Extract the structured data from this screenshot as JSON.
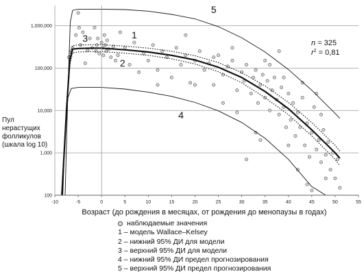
{
  "chart_data": {
    "type": "scatter",
    "title": "",
    "xlabel": "Возраст (до рождения в месяцах, от рождения до менопаузы в годах)",
    "ylabel_lines": [
      "Пул",
      "нерастущих",
      "фолликулов",
      "(шкала  log 10)"
    ],
    "xlim": [
      -10,
      55
    ],
    "ylim": [
      100,
      3000000
    ],
    "y_scale": "log10",
    "grid": "horizontal",
    "x_ticks": [
      "-10",
      "-5",
      "0",
      "5",
      "10",
      "15",
      "20",
      "25",
      "30",
      "35",
      "40",
      "45",
      "50",
      "55"
    ],
    "y_ticks": [
      {
        "value": 100,
        "label": "100"
      },
      {
        "value": 1000,
        "label": "1,000"
      },
      {
        "value": 10000,
        "label": "10,000"
      },
      {
        "value": 100000,
        "label": "100,000"
      },
      {
        "value": 1000000,
        "label": "1,000,000"
      }
    ],
    "stats": {
      "n_label": "n",
      "n_value": "= 325",
      "r2_label": "r",
      "r2_sup": "2",
      "r2_value": "= 0,81"
    },
    "curve_labels": [
      {
        "text": "1",
        "at": [
          7,
          500000
        ]
      },
      {
        "text": "2",
        "at": [
          4.5,
          110000
        ]
      },
      {
        "text": "3",
        "at": [
          -3.5,
          420000
        ]
      },
      {
        "text": "4",
        "at": [
          17,
          6500
        ]
      },
      {
        "text": "5",
        "at": [
          24,
          2000000
        ]
      }
    ],
    "series": [
      {
        "name": "1 – модель Wallace–Kelsey",
        "style": "solid-thick",
        "x": [
          -8.5,
          -7.5,
          -6.8,
          -6.2,
          -5,
          -2,
          0,
          5,
          10,
          15,
          20,
          25,
          30,
          35,
          40,
          45,
          50,
          51
        ],
        "y": [
          100,
          10000,
          150000,
          280000,
          290000,
          295000,
          295000,
          270000,
          240000,
          200000,
          155000,
          105000,
          60000,
          28000,
          11000,
          3500,
          1000,
          750
        ]
      },
      {
        "name": "2 – нижний 95% ДИ для модели",
        "style": "dotted",
        "x": [
          -8.5,
          -7.5,
          -6.8,
          -6.2,
          -5,
          -2,
          0,
          5,
          10,
          15,
          20,
          25,
          30,
          35,
          40,
          45,
          50,
          51
        ],
        "y": [
          100,
          8000,
          120000,
          230000,
          240000,
          245000,
          245000,
          225000,
          200000,
          165000,
          125000,
          82000,
          45000,
          20000,
          8000,
          2500,
          700,
          500
        ]
      },
      {
        "name": "3 – верхний 95% ДИ для модели",
        "style": "dotted",
        "x": [
          -8.5,
          -7.5,
          -6.8,
          -6.2,
          -5,
          -2,
          0,
          5,
          10,
          15,
          20,
          25,
          30,
          35,
          40,
          45,
          50,
          51
        ],
        "y": [
          100,
          12000,
          190000,
          340000,
          350000,
          355000,
          355000,
          330000,
          295000,
          250000,
          195000,
          135000,
          78000,
          38000,
          15500,
          5200,
          1500,
          1100
        ]
      },
      {
        "name": "4 – нижний 95% ДИ предел прогнозирования",
        "style": "solid-thin",
        "x": [
          -8.3,
          -7.8,
          -7.2,
          -6.5,
          -5,
          0,
          5,
          10,
          15,
          20,
          25,
          30,
          35,
          40,
          45,
          48
        ],
        "y": [
          100,
          3000,
          20000,
          33000,
          35000,
          35000,
          32000,
          27000,
          21500,
          15500,
          9800,
          5200,
          2200,
          700,
          160,
          100
        ]
      },
      {
        "name": "5 – верхний 95% ДИ предел прогнозирования",
        "style": "solid-thin",
        "x": [
          -7.8,
          -7.2,
          -6.7,
          -6.2,
          -5,
          0,
          5,
          10,
          15,
          20,
          25,
          30,
          35,
          40,
          45,
          50,
          51
        ],
        "y": [
          100,
          30000,
          1200000,
          2300000,
          2450000,
          2450000,
          2400000,
          2200000,
          1850000,
          1450000,
          950000,
          520000,
          240000,
          92000,
          30000,
          8500,
          6500
        ]
      }
    ],
    "observed_label": "наблюдаемые значения",
    "observed_sample": [
      [
        -7,
        180000
      ],
      [
        -6.5,
        250000
      ],
      [
        -6.2,
        300000
      ],
      [
        -5.5,
        600000
      ],
      [
        -5,
        2000000
      ],
      [
        -4.8,
        900000
      ],
      [
        -4.5,
        350000
      ],
      [
        -4,
        700000
      ],
      [
        -3.5,
        130000
      ],
      [
        -3,
        260000
      ],
      [
        -2.5,
        500000
      ],
      [
        -2,
        300000
      ],
      [
        -1.5,
        900000
      ],
      [
        -1.2,
        250000
      ],
      [
        -1,
        350000
      ],
      [
        -0.8,
        500000
      ],
      [
        -0.5,
        220000
      ],
      [
        0,
        400000
      ],
      [
        0.2,
        300000
      ],
      [
        0.4,
        200000
      ],
      [
        0.6,
        600000
      ],
      [
        0.8,
        350000
      ],
      [
        1,
        250000
      ],
      [
        1.2,
        450000
      ],
      [
        1.5,
        280000
      ],
      [
        2,
        180000
      ],
      [
        2.5,
        320000
      ],
      [
        3,
        150000
      ],
      [
        3.5,
        200000
      ],
      [
        4,
        700000
      ],
      [
        5,
        300000
      ],
      [
        6,
        120000
      ],
      [
        7,
        400000
      ],
      [
        8,
        80000
      ],
      [
        9,
        220000
      ],
      [
        10,
        150000
      ],
      [
        11,
        350000
      ],
      [
        12,
        90000
      ],
      [
        13,
        250000
      ],
      [
        14,
        180000
      ],
      [
        15,
        60000
      ],
      [
        16,
        300000
      ],
      [
        17,
        120000
      ],
      [
        18,
        200000
      ],
      [
        19,
        45000
      ],
      [
        20,
        150000
      ],
      [
        21,
        250000
      ],
      [
        22,
        90000
      ],
      [
        23,
        130000
      ],
      [
        24,
        40000
      ],
      [
        25,
        200000
      ],
      [
        26,
        70000
      ],
      [
        27,
        110000
      ],
      [
        28,
        150000
      ],
      [
        29,
        30000
      ],
      [
        30,
        80000
      ],
      [
        30.5,
        50000
      ],
      [
        31,
        120000
      ],
      [
        32,
        25000
      ],
      [
        32.5,
        60000
      ],
      [
        33,
        90000
      ],
      [
        33.5,
        15000
      ],
      [
        34,
        40000
      ],
      [
        34.5,
        70000
      ],
      [
        35,
        20000
      ],
      [
        35.5,
        50000
      ],
      [
        36,
        10000
      ],
      [
        36.5,
        30000
      ],
      [
        37,
        60000
      ],
      [
        37.5,
        18000
      ],
      [
        38,
        8000
      ],
      [
        38.5,
        35000
      ],
      [
        39,
        12000
      ],
      [
        39.5,
        4000
      ],
      [
        40,
        25000
      ],
      [
        40.5,
        6000
      ],
      [
        41,
        15000
      ],
      [
        41.5,
        2500
      ],
      [
        42,
        9000
      ],
      [
        42.5,
        4000
      ],
      [
        43,
        20000
      ],
      [
        43.5,
        1500
      ],
      [
        44,
        5000
      ],
      [
        44.5,
        800
      ],
      [
        45,
        3000
      ],
      [
        45.5,
        12000
      ],
      [
        46,
        1200
      ],
      [
        46.5,
        2000
      ],
      [
        47,
        600
      ],
      [
        47.5,
        3500
      ],
      [
        48,
        900
      ],
      [
        48.5,
        1800
      ],
      [
        49,
        400
      ],
      [
        49.5,
        1000
      ],
      [
        50,
        250
      ],
      [
        50.5,
        700
      ],
      [
        51,
        150
      ],
      [
        44,
        180
      ],
      [
        38,
        250000
      ],
      [
        35,
        150000
      ],
      [
        28,
        300000
      ],
      [
        20,
        40000
      ],
      [
        12,
        40000
      ],
      [
        45,
        130
      ],
      [
        33,
        3000
      ],
      [
        40,
        1500
      ],
      [
        42,
        400
      ],
      [
        36,
        120000
      ],
      [
        47,
        8000
      ],
      [
        29,
        9000
      ],
      [
        26,
        15000
      ],
      [
        31,
        700
      ],
      [
        39,
        60000
      ],
      [
        43,
        45000
      ],
      [
        46,
        25000
      ],
      [
        34,
        2000
      ],
      [
        48,
        250
      ],
      [
        24,
        180000
      ],
      [
        18,
        600000
      ]
    ]
  },
  "legend": {
    "items": [
      "наблюдаемые значения",
      "1 – модель Wallace–Kelsey",
      "2 – нижний 95% ДИ для модели",
      "3 – верхний 95% ДИ для модели",
      "4 – нижний 95% ДИ предел прогнозирования",
      "5 – верхний 95% ДИ предел прогнозирования"
    ]
  }
}
